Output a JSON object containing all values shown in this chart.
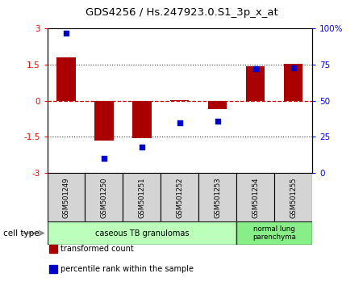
{
  "title": "GDS4256 / Hs.247923.0.S1_3p_x_at",
  "samples": [
    "GSM501249",
    "GSM501250",
    "GSM501251",
    "GSM501252",
    "GSM501253",
    "GSM501254",
    "GSM501255"
  ],
  "transformed_counts": [
    1.8,
    -1.65,
    -1.55,
    0.02,
    -0.35,
    1.45,
    1.55
  ],
  "percentile_ranks": [
    97,
    10,
    18,
    35,
    36,
    72,
    73
  ],
  "ylim_left": [
    -3,
    3
  ],
  "ylim_right": [
    0,
    100
  ],
  "left_yticks": [
    -3,
    -1.5,
    0,
    1.5,
    3
  ],
  "right_yticks": [
    0,
    25,
    50,
    75,
    100
  ],
  "right_yticklabels": [
    "0",
    "25",
    "50",
    "75",
    "100%"
  ],
  "bar_color": "#aa0000",
  "dot_color": "#0000cc",
  "bar_width": 0.5,
  "dot_size": 25,
  "group1_label": "caseous TB granulomas",
  "group2_label": "normal lung\nparenchyma",
  "group1_color": "#bbffbb",
  "group2_color": "#88ee88",
  "cell_type_label": "cell type",
  "legend1_label": "transformed count",
  "legend2_label": "percentile rank within the sample",
  "zero_line_color": "#cc0000",
  "dotted_line_color": "#333333"
}
